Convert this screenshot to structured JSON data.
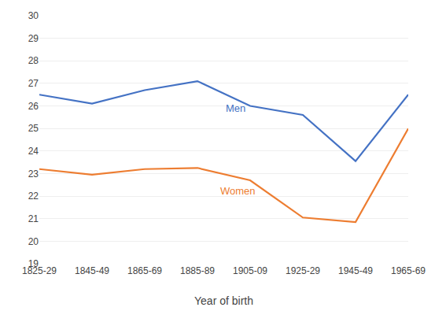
{
  "chart_data": {
    "type": "line",
    "xlabel": "Year of birth",
    "categories": [
      "1825-29",
      "1845-49",
      "1865-69",
      "1885-89",
      "1905-09",
      "1925-29",
      "1945-49",
      "1965-69"
    ],
    "series": [
      {
        "color": "#4472C4",
        "values": [
          26.5,
          26.1,
          26.7,
          27.1,
          26.0,
          25.6,
          23.55,
          26.5
        ]
      },
      {
        "color": "#ED7D31",
        "values": [
          23.2,
          22.95,
          23.2,
          23.25,
          22.7,
          21.05,
          20.85,
          25.0
        ]
      }
    ],
    "annotations": [
      {
        "text": "Men",
        "x": 3.5,
        "y": 25.55,
        "color": "#4472C4"
      },
      {
        "text": "Women",
        "x": 3.4,
        "y": 21.9,
        "color": "#ED7D31"
      }
    ],
    "ylim": [
      19,
      30
    ],
    "yticks": [
      19,
      20,
      21,
      22,
      23,
      24,
      25,
      26,
      27,
      28,
      29,
      30
    ],
    "grid": true
  }
}
